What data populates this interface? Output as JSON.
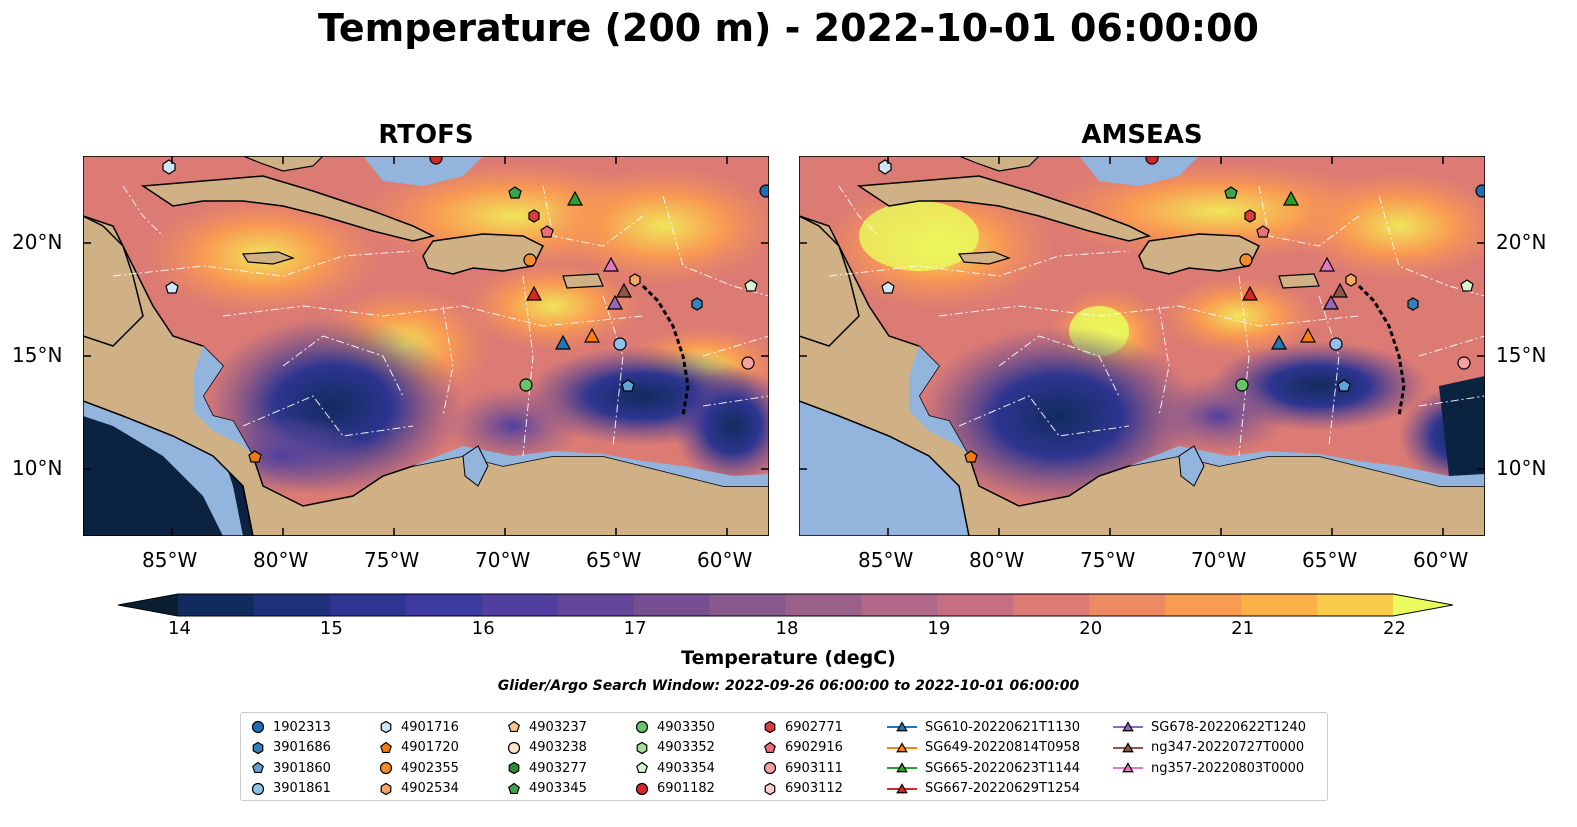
{
  "title": "Temperature (200 m) - 2022-10-01 06:00:00",
  "panels": [
    {
      "id": "rtofs",
      "title": "RTOFS"
    },
    {
      "id": "amseas",
      "title": "AMSEAS"
    }
  ],
  "lat_labels": [
    "20°N",
    "15°N",
    "10°N"
  ],
  "lon_labels": [
    "85°W",
    "80°W",
    "75°W",
    "70°W",
    "65°W",
    "60°W"
  ],
  "colorbar": {
    "label": "Temperature (degC)",
    "ticks": [
      "14",
      "15",
      "16",
      "17",
      "18",
      "19",
      "20",
      "21",
      "22"
    ],
    "min": 14,
    "max": 22,
    "step": 0.5,
    "colors": [
      "#0b2341",
      "#122b5e",
      "#1f317b",
      "#2d3590",
      "#3c3a9e",
      "#503f9f",
      "#634698",
      "#764f92",
      "#88598d",
      "#9c618a",
      "#b26888",
      "#c76f82",
      "#dc7b74",
      "#ee8a63",
      "#f99b52",
      "#fcb048",
      "#f8cc48",
      "#f0e55a"
    ],
    "under_color": "#0a1e32",
    "over_color": "#eafc5c"
  },
  "window_label": "Glider/Argo Search Window: 2022-09-26 06:00:00 to 2022-10-01 06:00:00",
  "legend": {
    "columns": [
      [
        {
          "label": "1902313",
          "marker": "circle",
          "color": "#1f6fb4"
        },
        {
          "label": "3901686",
          "marker": "hexagon",
          "color": "#3182bd"
        },
        {
          "label": "3901860",
          "marker": "pentagon",
          "color": "#5ea4d8"
        },
        {
          "label": "3901861",
          "marker": "circle",
          "color": "#8fc2ea"
        }
      ],
      [
        {
          "label": "4901716",
          "marker": "hexagon",
          "color": "#cfe6f6"
        },
        {
          "label": "4901720",
          "marker": "pentagon",
          "color": "#f07a14"
        },
        {
          "label": "4902355",
          "marker": "circle",
          "color": "#f48c2c"
        },
        {
          "label": "4902534",
          "marker": "hexagon",
          "color": "#f9a862"
        }
      ],
      [
        {
          "label": "4903237",
          "marker": "pentagon",
          "color": "#fbc58f"
        },
        {
          "label": "4903238",
          "marker": "circle",
          "color": "#fde3c8"
        },
        {
          "label": "4903277",
          "marker": "hexagon",
          "color": "#2c8c34"
        },
        {
          "label": "4903345",
          "marker": "pentagon",
          "color": "#3ba44a"
        }
      ],
      [
        {
          "label": "4903350",
          "marker": "circle",
          "color": "#68c46a"
        },
        {
          "label": "4903352",
          "marker": "hexagon",
          "color": "#a6dd9a"
        },
        {
          "label": "4903354",
          "marker": "pentagon",
          "color": "#d9f2d2"
        },
        {
          "label": "6901182",
          "marker": "circle",
          "color": "#d42727"
        }
      ],
      [
        {
          "label": "6902771",
          "marker": "hexagon",
          "color": "#dc3c3c"
        },
        {
          "label": "6902916",
          "marker": "pentagon",
          "color": "#ec6f78"
        },
        {
          "label": "6903111",
          "marker": "circle",
          "color": "#f6a0a0"
        },
        {
          "label": "6903112",
          "marker": "hexagon",
          "color": "#fcd0cc"
        }
      ],
      [
        {
          "label": "SG610-20220621T1130",
          "marker": "triangle",
          "color": "#1f77b4",
          "line": true
        },
        {
          "label": "SG649-20220814T0958",
          "marker": "triangle",
          "color": "#ff7f0e",
          "line": true
        },
        {
          "label": "SG665-20220623T1144",
          "marker": "triangle",
          "color": "#2ca02c",
          "line": true
        },
        {
          "label": "SG667-20220629T1254",
          "marker": "triangle",
          "color": "#d62728",
          "line": true
        }
      ],
      [
        {
          "label": "SG678-20220622T1240",
          "marker": "triangle",
          "color": "#9467bd",
          "line": true
        },
        {
          "label": "ng347-20220727T0000",
          "marker": "triangle",
          "color": "#8c564b",
          "line": true
        },
        {
          "label": "ng357-20220803T0000",
          "marker": "triangle",
          "color": "#e377c2",
          "line": true
        }
      ]
    ]
  },
  "map_colors": {
    "land": "#cfb185",
    "shelf": "#93b4dd",
    "coast": "#000000"
  }
}
